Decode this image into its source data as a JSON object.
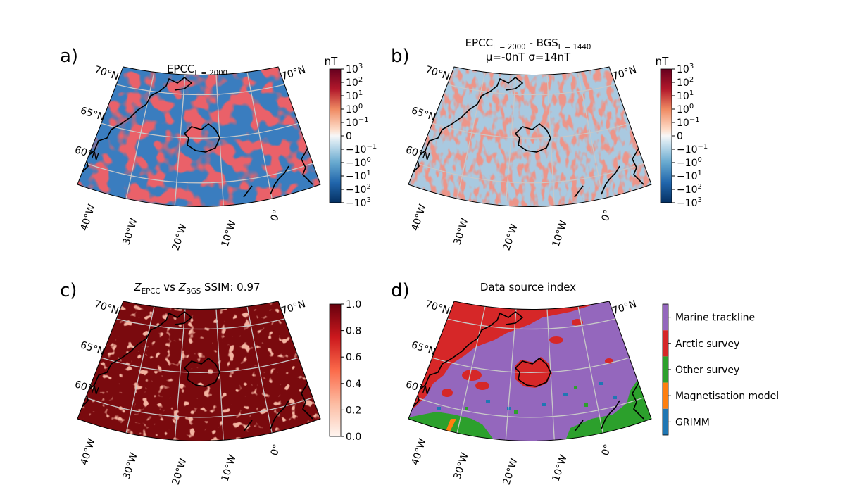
{
  "panels": [
    {
      "label": "a)",
      "title": [
        {
          "text": "EPCC"
        },
        {
          "sub": "L = 2000"
        }
      ],
      "colorbar": {
        "unit": "nT",
        "ticks": [
          {
            "base": "10",
            "exp": "3"
          },
          {
            "base": "10",
            "exp": "2"
          },
          {
            "base": "10",
            "exp": "1"
          },
          {
            "base": "10",
            "exp": "0"
          },
          {
            "base": "10",
            "exp": "−1"
          },
          {
            "base": "0"
          },
          {
            "base": "−10",
            "exp": "−1"
          },
          {
            "base": "−10",
            "exp": "0"
          },
          {
            "base": "−10",
            "exp": "1"
          },
          {
            "base": "−10",
            "exp": "2"
          },
          {
            "base": "−10",
            "exp": "3"
          }
        ]
      }
    },
    {
      "label": "b)",
      "title": [
        {
          "text": "EPCC"
        },
        {
          "sub": "L = 2000"
        },
        {
          "text": " - BGS"
        },
        {
          "sub": "L = 1440"
        }
      ],
      "subtitle": "μ=-0nT σ=14nT",
      "colorbar": {
        "unit": "nT",
        "ticks": [
          {
            "base": "10",
            "exp": "3"
          },
          {
            "base": "10",
            "exp": "2"
          },
          {
            "base": "10",
            "exp": "1"
          },
          {
            "base": "10",
            "exp": "0"
          },
          {
            "base": "10",
            "exp": "−1"
          },
          {
            "base": "0"
          },
          {
            "base": "−10",
            "exp": "−1"
          },
          {
            "base": "−10",
            "exp": "0"
          },
          {
            "base": "−10",
            "exp": "1"
          },
          {
            "base": "−10",
            "exp": "2"
          },
          {
            "base": "−10",
            "exp": "3"
          }
        ]
      }
    },
    {
      "label": "c)",
      "title": [
        {
          "italic": "Z"
        },
        {
          "sub": "EPCC"
        },
        {
          "text": " vs "
        },
        {
          "italic": "Z"
        },
        {
          "sub": "BGS"
        },
        {
          "text": " SSIM: 0.97"
        }
      ],
      "colorbar": {
        "lim": [
          0,
          1
        ],
        "ticks": [
          {
            "value": 1,
            "label": "1.0"
          },
          0.8,
          0.6,
          0.4,
          0.2,
          {
            "value": 0,
            "label": "0.0"
          }
        ]
      }
    },
    {
      "label": "d)",
      "title": [
        {
          "text": "Data source index"
        }
      ],
      "legend": [
        {
          "name": "Marine trackline",
          "color": "#9467bd"
        },
        {
          "name": "Arctic survey",
          "color": "#d62728"
        },
        {
          "name": "Other survey",
          "color": "#2ca02c"
        },
        {
          "name": "Magnetisation model",
          "color": "#ff7f0e"
        },
        {
          "name": "GRIMM",
          "color": "#1f77b4"
        }
      ]
    }
  ],
  "map_labels": {
    "lat_left": [
      "70°N",
      "65°N",
      "60°N"
    ],
    "lat_right": "70°N",
    "lon": [
      "40°W",
      "30°W",
      "20°W",
      "10°W",
      "0°"
    ]
  }
}
